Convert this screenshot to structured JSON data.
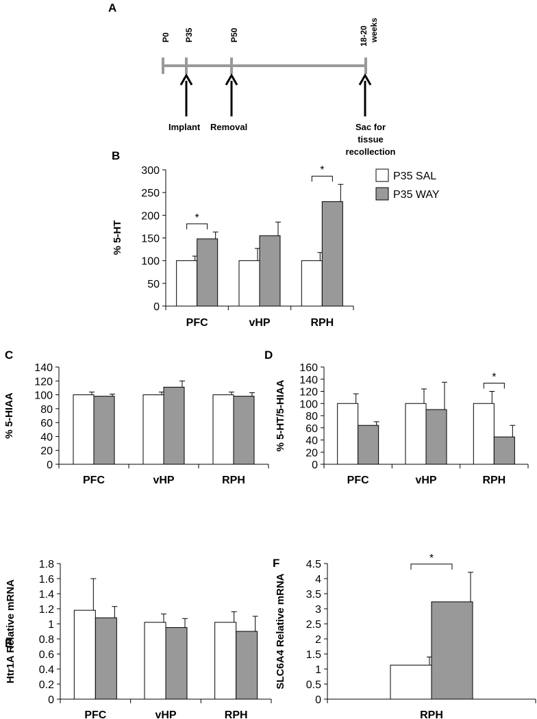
{
  "timeline": {
    "letter": "A",
    "ticks": [
      "P0",
      "P35",
      "P50"
    ],
    "end_tick": [
      "18-20",
      "weeks"
    ],
    "events": [
      "Implant",
      "Removal"
    ],
    "sac": [
      "Sac for",
      "tissue",
      "recollection"
    ]
  },
  "legend": {
    "sal": "P35 SAL",
    "way": "P35 WAY",
    "colors": {
      "sal": "#ffffff",
      "way": "#999999"
    }
  },
  "chart_data": [
    {
      "panel": "B",
      "type": "bar",
      "ylabel": "% 5-HT",
      "categories": [
        "PFC",
        "vHP",
        "RPH"
      ],
      "ylim": [
        0,
        300
      ],
      "yticks": [
        0,
        50,
        100,
        150,
        200,
        250,
        300
      ],
      "series": [
        {
          "name": "P35 SAL",
          "values": [
            100,
            100,
            100
          ],
          "errors": [
            10,
            27,
            18
          ]
        },
        {
          "name": "P35 WAY",
          "values": [
            148,
            155,
            230
          ],
          "errors": [
            15,
            30,
            38
          ]
        }
      ],
      "significance": [
        {
          "category": "PFC",
          "label": "*"
        },
        {
          "category": "RPH",
          "label": "*"
        }
      ]
    },
    {
      "panel": "C",
      "type": "bar",
      "ylabel": "% 5-HIAA",
      "categories": [
        "PFC",
        "vHP",
        "RPH"
      ],
      "ylim": [
        0,
        140
      ],
      "yticks": [
        0,
        20,
        40,
        60,
        80,
        100,
        120,
        140
      ],
      "series": [
        {
          "name": "P35 SAL",
          "values": [
            100,
            100,
            100
          ],
          "errors": [
            4,
            4,
            4
          ]
        },
        {
          "name": "P35 WAY",
          "values": [
            98,
            111,
            98
          ],
          "errors": [
            3,
            9,
            5
          ]
        }
      ],
      "significance": []
    },
    {
      "panel": "D",
      "type": "bar",
      "ylabel": "% 5-HT/5-HIAA",
      "categories": [
        "PFC",
        "vHP",
        "RPH"
      ],
      "ylim": [
        0,
        160
      ],
      "yticks": [
        0,
        20,
        40,
        60,
        80,
        100,
        120,
        140,
        160
      ],
      "series": [
        {
          "name": "P35 SAL",
          "values": [
            100,
            100,
            100
          ],
          "errors": [
            16,
            24,
            20
          ]
        },
        {
          "name": "P35 WAY",
          "values": [
            64,
            90,
            45
          ],
          "errors": [
            6,
            45,
            19
          ]
        }
      ],
      "significance": [
        {
          "category": "RPH",
          "label": "*"
        }
      ]
    },
    {
      "panel": "E",
      "type": "bar",
      "ylabel": "Htr1A Relative mRNA",
      "categories": [
        "PFC",
        "vHP",
        "RPH"
      ],
      "ylim": [
        0,
        1.8
      ],
      "yticks": [
        "0",
        "0.2",
        "0.4",
        "0.6",
        "0.8",
        "1",
        "1.2",
        "1.4",
        "1.6",
        "1.8"
      ],
      "series": [
        {
          "name": "P35 SAL",
          "values": [
            1.18,
            1.02,
            1.02
          ],
          "errors": [
            0.42,
            0.11,
            0.14
          ]
        },
        {
          "name": "P35 WAY",
          "values": [
            1.08,
            0.95,
            0.9
          ],
          "errors": [
            0.15,
            0.12,
            0.2
          ]
        }
      ],
      "significance": []
    },
    {
      "panel": "F",
      "type": "bar",
      "ylabel": "SLC6A4 Relative mRNA",
      "categories": [
        "RPH"
      ],
      "ylim": [
        0,
        4.5
      ],
      "yticks": [
        "0",
        "0.5",
        "1",
        "1.5",
        "2",
        "2.5",
        "3",
        "3.5",
        "4",
        "4.5"
      ],
      "series": [
        {
          "name": "P35 SAL",
          "values": [
            1.13
          ],
          "errors": [
            0.27
          ]
        },
        {
          "name": "P35 WAY",
          "values": [
            3.23
          ],
          "errors": [
            0.98
          ]
        }
      ],
      "significance": [
        {
          "category": "RPH",
          "label": "*"
        }
      ]
    }
  ]
}
